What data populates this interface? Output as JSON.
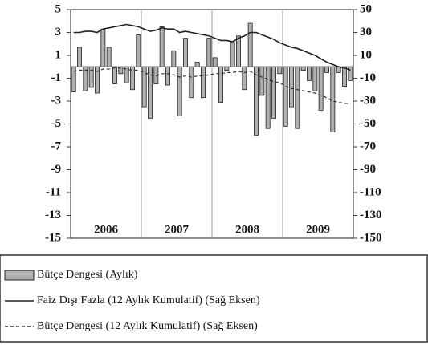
{
  "chart_data": {
    "type": "bar_line",
    "categories": [
      null,
      null,
      null,
      null,
      null,
      null,
      null,
      null,
      null,
      null,
      null,
      null,
      null,
      null,
      null,
      null,
      null,
      null,
      null,
      null,
      null,
      null,
      null,
      null,
      null,
      null,
      null,
      null,
      null,
      null,
      null,
      null,
      null,
      null,
      null,
      null,
      null,
      null,
      null,
      null,
      null,
      null,
      null,
      null,
      null,
      null,
      null,
      null
    ],
    "x_groups": [
      "2006",
      "2007",
      "2008",
      "2009"
    ],
    "ylim": [
      -15,
      5
    ],
    "yticks": [
      5,
      3,
      1,
      -1,
      -3,
      -5,
      -7,
      -9,
      -11,
      -13,
      -15
    ],
    "y2lim": [
      -150,
      50
    ],
    "y2ticks": [
      50,
      30,
      10,
      -10,
      -30,
      -50,
      -70,
      -90,
      -110,
      -130,
      -150
    ],
    "series": [
      {
        "name": "Bütçe Dengesi (Aylık)",
        "kind": "bar",
        "color": "#b0b0b0",
        "values": [
          -2.2,
          1.7,
          -2.1,
          -1.8,
          -2.3,
          3.3,
          1.7,
          -1.5,
          -0.6,
          -1.4,
          -2.0,
          2.8,
          -3.5,
          -4.5,
          -1.5,
          3.5,
          -1.6,
          1.4,
          -4.3,
          2.5,
          -2.7,
          0.4,
          -2.7,
          2.5,
          0.8,
          -3.1,
          -0.3,
          2.2,
          2.7,
          -2.0,
          3.8,
          -6.0,
          -2.5,
          -5.4,
          -4.5,
          -0.6,
          -5.2,
          -3.5,
          -5.4,
          -0.3,
          -1.2,
          -2.1,
          -3.8,
          -0.5,
          -5.7,
          -0.5,
          -1.7,
          -1.2
        ]
      },
      {
        "name": "Faiz Dışı Fazla (12 Aylık Kumulatif) (Sağ Eksen)",
        "kind": "line",
        "axis": "y2",
        "color": "#222222",
        "values": [
          30,
          30,
          31,
          31,
          30,
          33,
          34,
          35,
          36,
          37,
          36,
          35,
          33,
          31,
          32,
          34,
          33,
          33,
          30,
          31,
          30,
          29,
          28,
          27,
          25,
          23,
          23,
          22,
          25,
          27,
          30,
          30,
          28,
          26,
          24,
          21,
          19,
          17,
          16,
          14,
          12,
          10,
          7,
          4,
          2,
          0,
          -1,
          -3
        ]
      },
      {
        "name": "Bütçe Dengesi (12 Aylık Kumulatif) (Sağ Eksen)",
        "kind": "dashed",
        "axis": "y2",
        "color": "#333333",
        "values": [
          -4,
          -3,
          -3,
          -3,
          -4,
          -2,
          -2,
          -1,
          -1,
          -2,
          -3,
          -3,
          -5,
          -7,
          -8,
          -6,
          -6,
          -7,
          -9,
          -8,
          -9,
          -8,
          -8,
          -7,
          -6,
          -6,
          -5,
          -5,
          -4,
          -5,
          -4,
          -7,
          -9,
          -11,
          -13,
          -14,
          -17,
          -19,
          -20,
          -21,
          -22,
          -23,
          -25,
          -27,
          -30,
          -31,
          -32,
          -32
        ]
      }
    ]
  }
}
